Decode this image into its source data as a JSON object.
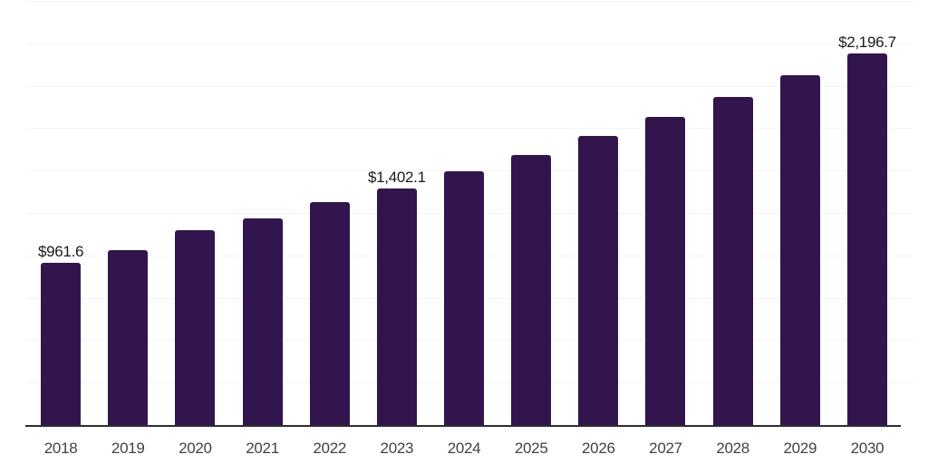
{
  "chart_data": {
    "type": "bar",
    "title": "",
    "xlabel": "",
    "ylabel": "",
    "categories": [
      "2018",
      "2019",
      "2020",
      "2021",
      "2022",
      "2023",
      "2024",
      "2025",
      "2026",
      "2027",
      "2028",
      "2029",
      "2030"
    ],
    "values": [
      961.6,
      1036,
      1154,
      1226,
      1318,
      1402.1,
      1500,
      1597,
      1709,
      1822,
      1941,
      2069,
      2196.7
    ],
    "labeled_points": [
      {
        "index": 0,
        "category": "2018",
        "text": "$961.6"
      },
      {
        "index": 5,
        "category": "2023",
        "text": "$1,402.1"
      },
      {
        "index": 12,
        "category": "2030",
        "text": "$2,196.7"
      }
    ],
    "estimated_value_indices": [
      1,
      2,
      3,
      4,
      6,
      7,
      8,
      9,
      10,
      11
    ],
    "ylim": [
      0,
      2500
    ],
    "gridline_step": 250,
    "grid": true,
    "legend": false,
    "y_axis_tick_labels_visible": false,
    "colors": {
      "bar": "#33154d",
      "gridline": "#f4f4f4",
      "axis_line": "#2e2e2e",
      "value_label": "#1a1a1a",
      "tick_label": "#424242",
      "background": "#ffffff"
    }
  }
}
